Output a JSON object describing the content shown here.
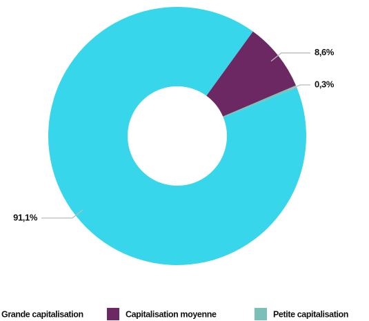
{
  "chart_data": {
    "type": "donut",
    "categories": [
      "Grande capitalisation",
      "Capitalisation moyenne",
      "Petite capitalisation"
    ],
    "values": [
      91.1,
      8.6,
      0.3
    ],
    "value_labels": [
      "91,1%",
      "8,6%",
      "0,3%"
    ],
    "colors": [
      "#37d6eb",
      "#6c2862",
      "#7bbfb9"
    ],
    "legend": "bottom"
  }
}
